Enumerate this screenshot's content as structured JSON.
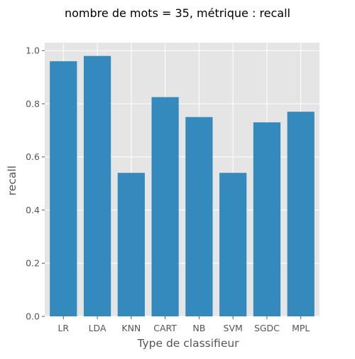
{
  "chart_data": {
    "type": "bar",
    "title": "nombre de mots = 35, métrique : recall",
    "xlabel": "Type de classifieur",
    "ylabel": "recall",
    "categories": [
      "LR",
      "LDA",
      "KNN",
      "CART",
      "NB",
      "SVM",
      "SGDC",
      "MPL"
    ],
    "values": [
      0.96,
      0.98,
      0.54,
      0.825,
      0.75,
      0.54,
      0.73,
      0.77
    ],
    "ylim": [
      0.0,
      1.03
    ],
    "yticks": [
      0.0,
      0.2,
      0.4,
      0.6,
      0.8,
      1.0
    ],
    "ytick_labels": [
      "0.0",
      "0.2",
      "0.4",
      "0.6",
      "0.8",
      "1.0"
    ],
    "grid": true,
    "colors": {
      "bar": "#348ABD",
      "background": "#E5E5E5",
      "grid": "#FFFFFF",
      "text": "#555555"
    }
  }
}
